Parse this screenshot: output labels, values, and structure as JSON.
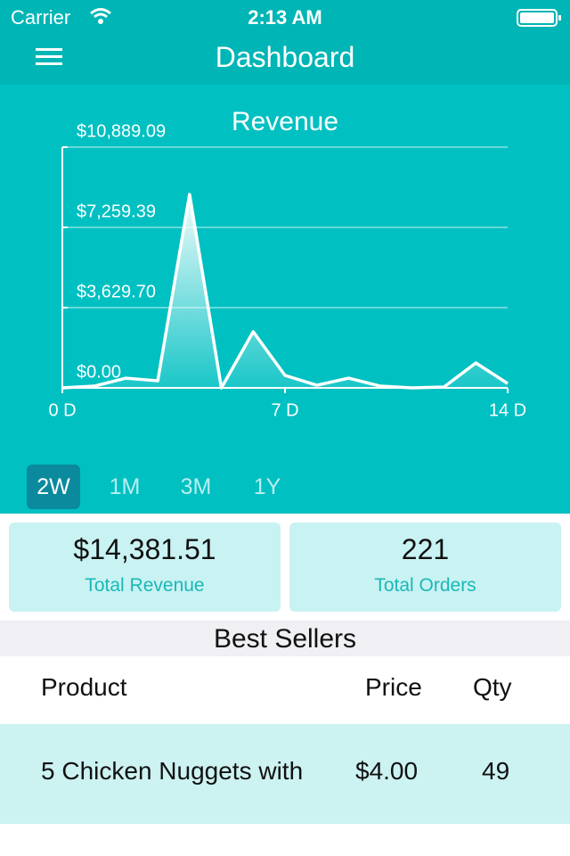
{
  "status_bar": {
    "carrier": "Carrier",
    "time": "2:13 AM"
  },
  "nav": {
    "title": "Dashboard"
  },
  "chart_data": {
    "type": "area",
    "title": "Revenue",
    "x": [
      0,
      1,
      2,
      3,
      4,
      5,
      6,
      7,
      8,
      9,
      10,
      11,
      12,
      13,
      14
    ],
    "values": [
      0,
      80,
      440,
      320,
      8750,
      0,
      2540,
      565,
      120,
      440,
      80,
      0,
      40,
      1130,
      200
    ],
    "xlim": [
      0,
      14
    ],
    "xticks": [
      {
        "value": 0,
        "label": "0 D"
      },
      {
        "value": 7,
        "label": "7 D"
      },
      {
        "value": 14,
        "label": "14 D"
      }
    ],
    "ylim": [
      0,
      10889.09
    ],
    "yticks": [
      {
        "value": 0,
        "label": "$0.00"
      },
      {
        "value": 3629.7,
        "label": "$3,629.70"
      },
      {
        "value": 7259.39,
        "label": "$7,259.39"
      },
      {
        "value": 10889.09,
        "label": "$10,889.09"
      }
    ],
    "color": "#ffffff",
    "grid": true
  },
  "ranges": [
    "2W",
    "1M",
    "3M",
    "1Y"
  ],
  "summary": [
    {
      "value": "$14,381.51",
      "label": "Total Revenue"
    },
    {
      "value": "221",
      "label": "Total Orders"
    }
  ],
  "best_sellers": {
    "title": "Best Sellers",
    "columns": [
      "Product",
      "Price",
      "Qty"
    ],
    "rows": [
      [
        "5 Chicken Nuggets with",
        "$4.00",
        "49"
      ]
    ]
  }
}
